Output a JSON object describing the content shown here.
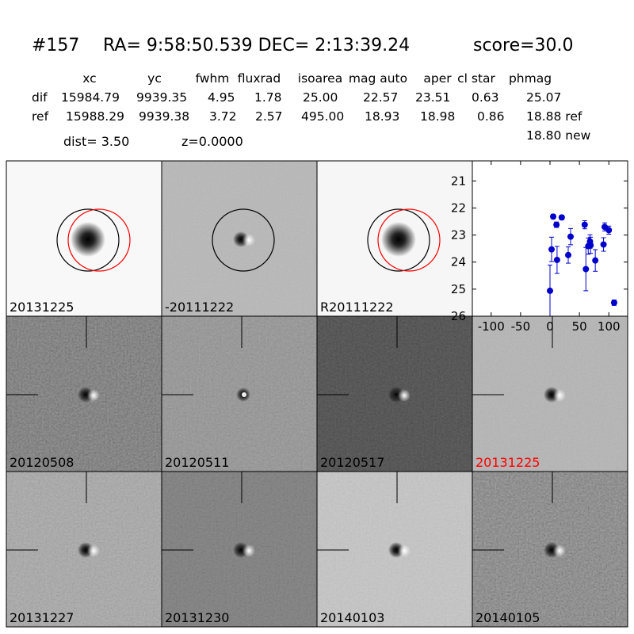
{
  "header": {
    "id": "#157",
    "coords": "RA= 9:58:50.539 DEC= 2:13:39.24",
    "score": "score=30.0"
  },
  "table": {
    "columns": [
      "xc",
      "yc",
      "fwhm",
      "fluxrad",
      "isoarea",
      "mag auto",
      "aper",
      "cl star",
      "phmag"
    ],
    "rows": [
      [
        "dif",
        "15984.79",
        "9939.35",
        "4.95",
        "1.78",
        "25.00",
        "22.57",
        "23.51",
        "0.63",
        "25.07"
      ],
      [
        "ref",
        "15988.29",
        "9939.38",
        "3.72",
        "2.57",
        "495.00",
        "18.93",
        "18.98",
        "0.86",
        "18.88 ref"
      ]
    ],
    "note": "18.80 new"
  },
  "info": {
    "dist": "dist=  3.50",
    "z": "z=0.0000"
  },
  "panels": [
    {
      "label": "20131225"
    },
    {
      "label": "-20111222"
    },
    {
      "label": "R20111222"
    },
    {
      "label": "20120508"
    },
    {
      "label": "20120511"
    },
    {
      "label": "20120517"
    },
    {
      "label": "20131225",
      "color": "#ff0000"
    },
    {
      "label": "20131227"
    },
    {
      "label": "20131230"
    },
    {
      "label": "20140103"
    },
    {
      "label": "20140105"
    }
  ],
  "chart_data": {
    "type": "scatter",
    "x": [
      0,
      2.7,
      5.4,
      11,
      12,
      20,
      31,
      35,
      59,
      61,
      65,
      68,
      69,
      77,
      91,
      93,
      100,
      109
    ],
    "series": [
      {
        "color": "#0000cc",
        "values": [
          25.06,
          23.53,
          22.32,
          22.62,
          23.92,
          22.35,
          23.74,
          23.06,
          22.62,
          24.26,
          23.41,
          23.24,
          23.38,
          23.94,
          23.35,
          22.7,
          22.82,
          25.5
        ],
        "errors": [
          0.95,
          0.45,
          0.08,
          0.1,
          0.5,
          0.08,
          0.3,
          0.3,
          0.15,
          0.8,
          0.3,
          0.25,
          0.3,
          0.4,
          0.25,
          0.15,
          0.15,
          0.1
        ]
      }
    ],
    "xlim": [
      -132,
      132
    ],
    "ylim": [
      26,
      20.26
    ],
    "xticks": [
      -100,
      -50,
      0,
      50,
      100
    ],
    "yticks": [
      21,
      22,
      23,
      24,
      25,
      26
    ]
  }
}
